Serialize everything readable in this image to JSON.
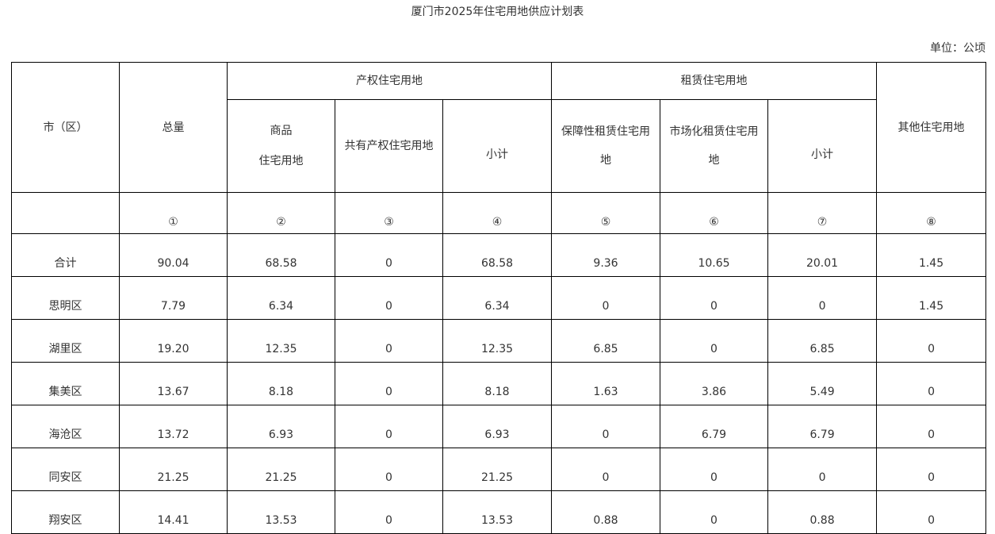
{
  "title": "厦门市2025年住宅用地供应计划表",
  "unit": "单位：公顷",
  "header": {
    "district": "市（区）",
    "total": "总量",
    "property_group": "产权住宅用地",
    "rental_group": "租赁住宅用地",
    "other": "其他住宅用地",
    "commercial_line1": "商品",
    "commercial_line2": "住宅用地",
    "shared": "共有产权住宅用地",
    "property_subtotal": "小计",
    "affordable_line1": "保障性租赁住宅用",
    "affordable_line2": "地",
    "market_line1": "市场化租赁住宅用",
    "market_line2": "地",
    "rental_subtotal": "小计",
    "numbers": [
      "①",
      "②",
      "③",
      "④",
      "⑤",
      "⑥",
      "⑦",
      "⑧"
    ]
  },
  "rows": [
    {
      "name": "合计",
      "values": [
        "90.04",
        "68.58",
        "0",
        "68.58",
        "9.36",
        "10.65",
        "20.01",
        "1.45"
      ]
    },
    {
      "name": "思明区",
      "values": [
        "7.79",
        "6.34",
        "0",
        "6.34",
        "0",
        "0",
        "0",
        "1.45"
      ]
    },
    {
      "name": "湖里区",
      "values": [
        "19.20",
        "12.35",
        "0",
        "12.35",
        "6.85",
        "0",
        "6.85",
        "0"
      ]
    },
    {
      "name": "集美区",
      "values": [
        "13.67",
        "8.18",
        "0",
        "8.18",
        "1.63",
        "3.86",
        "5.49",
        "0"
      ]
    },
    {
      "name": "海沧区",
      "values": [
        "13.72",
        "6.93",
        "0",
        "6.93",
        "0",
        "6.79",
        "6.79",
        "0"
      ]
    },
    {
      "name": "同安区",
      "values": [
        "21.25",
        "21.25",
        "0",
        "21.25",
        "0",
        "0",
        "0",
        "0"
      ]
    },
    {
      "name": "翔安区",
      "values": [
        "14.41",
        "13.53",
        "0",
        "13.53",
        "0.88",
        "0",
        "0.88",
        "0"
      ]
    }
  ]
}
